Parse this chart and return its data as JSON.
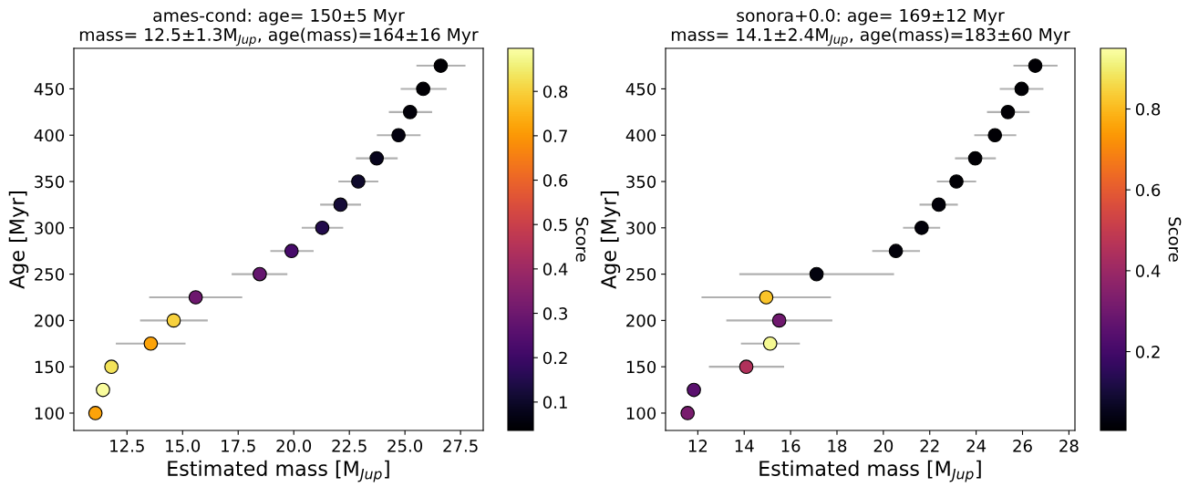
{
  "chart_data": [
    {
      "type": "scatter",
      "title": "ames-cond: age= 150±5 Myr\nmass= 12.5±1.3M$_{Jup}$, age(mass)=164±16 Myr",
      "xlabel": "Estimated mass [M$_{Jup}$]",
      "ylabel": "Age [Myr]",
      "clabel": "Score",
      "marker": "circle",
      "x": [
        11.08,
        11.42,
        11.8,
        13.57,
        14.6,
        15.59,
        18.47,
        19.9,
        21.28,
        22.1,
        22.9,
        23.73,
        24.71,
        25.23,
        25.82,
        26.61
      ],
      "values": [
        100,
        125,
        150,
        175,
        200,
        225,
        250,
        275,
        300,
        325,
        350,
        375,
        400,
        425,
        450,
        475
      ],
      "xerrors": [
        null,
        null,
        null,
        [
          12.04,
          15.09
        ],
        [
          13.13,
          16.09
        ],
        [
          13.54,
          17.64
        ],
        [
          17.25,
          19.67
        ],
        [
          18.99,
          20.85
        ],
        [
          20.4,
          22.18
        ],
        [
          21.23,
          22.98
        ],
        [
          22.05,
          23.76
        ],
        [
          22.84,
          24.63
        ],
        [
          23.78,
          25.66
        ],
        [
          24.32,
          26.18
        ],
        [
          24.85,
          26.83
        ],
        [
          25.56,
          27.68
        ]
      ],
      "cvalues": [
        0.72,
        0.89,
        0.83,
        0.72,
        0.8,
        0.3,
        0.28,
        0.22,
        0.15,
        0.12,
        0.1,
        0.08,
        0.06,
        0.05,
        0.04,
        0.04
      ],
      "clim": [
        0.036,
        0.897
      ],
      "cticks": [
        0.1,
        0.2,
        0.3,
        0.4,
        0.5,
        0.6,
        0.7,
        0.8
      ],
      "xlim": [
        10.11,
        28.52
      ],
      "xticks": [
        12.5,
        {
          "value": 15,
          "label": "15.0"
        },
        17.5,
        {
          "value": 20,
          "label": "20.0"
        },
        22.5,
        {
          "value": 25,
          "label": "25.0"
        },
        27.5
      ],
      "ylim": [
        81.25,
        493.75
      ],
      "yticks": [
        100,
        150,
        200,
        250,
        300,
        350,
        400,
        450
      ]
    },
    {
      "type": "scatter",
      "title": "sonora+0.0: age= 169±12 Myr\nmass= 14.1±2.4M$_{Jup}$, age(mass)=183±60 Myr",
      "xlabel": "Estimated mass [M$_{Jup}$]",
      "ylabel": "Age [Myr]",
      "clabel": "Score",
      "marker": "circle",
      "x": [
        11.56,
        11.83,
        14.09,
        15.12,
        15.51,
        14.95,
        17.12,
        20.54,
        21.65,
        22.39,
        23.15,
        23.96,
        24.81,
        25.37,
        25.96,
        26.55
      ],
      "values": [
        100,
        125,
        150,
        175,
        200,
        225,
        250,
        275,
        300,
        325,
        350,
        375,
        400,
        425,
        450,
        475
      ],
      "xerrors": [
        null,
        null,
        [
          12.52,
          15.68
        ],
        [
          13.9,
          16.36
        ],
        [
          13.27,
          17.76
        ],
        [
          12.2,
          17.7
        ],
        [
          13.83,
          20.42
        ],
        [
          19.56,
          21.54
        ],
        [
          20.89,
          22.41
        ],
        [
          21.6,
          23.17
        ],
        [
          22.35,
          23.96
        ],
        [
          23.13,
          24.81
        ],
        [
          23.96,
          25.69
        ],
        [
          24.51,
          26.26
        ],
        [
          25.06,
          26.86
        ],
        [
          25.65,
          27.47
        ]
      ],
      "cvalues": [
        0.32,
        0.25,
        0.45,
        0.93,
        0.3,
        0.82,
        0.03,
        0.02,
        0.02,
        0.02,
        0.01,
        0.01,
        0.01,
        0.01,
        0.01,
        0.01
      ],
      "clim": [
        0.005,
        0.95
      ],
      "cticks": [
        0.2,
        0.4,
        0.6,
        0.8
      ],
      "xlim": [
        10.61,
        28.26
      ],
      "xticks": [
        12,
        14,
        16,
        18,
        20,
        22,
        24,
        26,
        28
      ],
      "ylim": [
        81.25,
        493.75
      ],
      "yticks": [
        100,
        150,
        200,
        250,
        300,
        350,
        400,
        450
      ]
    }
  ]
}
